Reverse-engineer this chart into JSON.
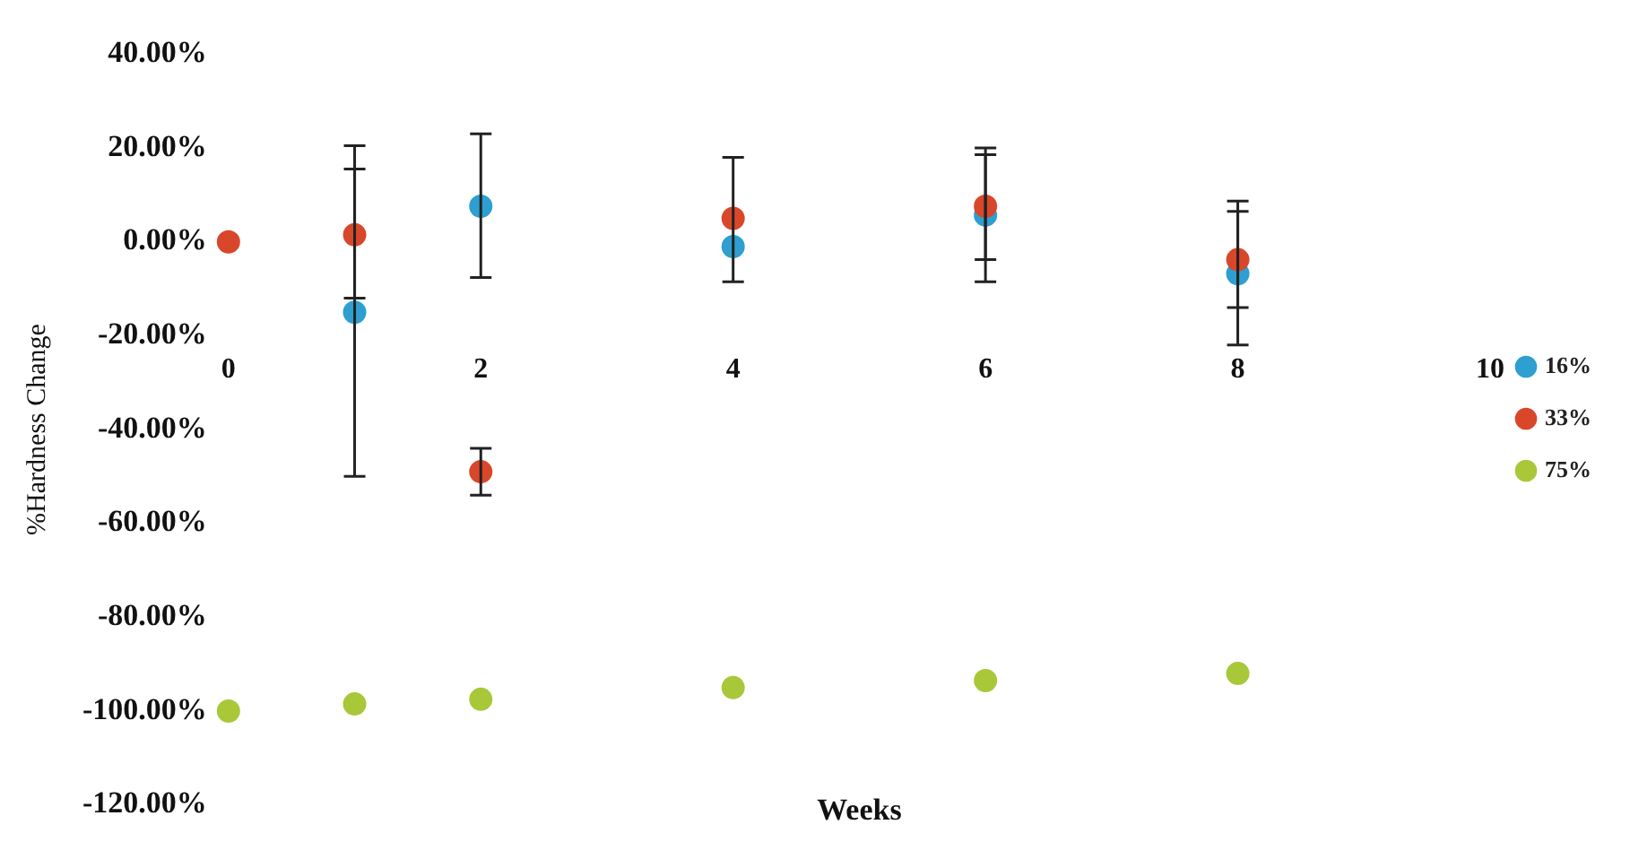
{
  "chart_data": {
    "type": "scatter",
    "xlabel": "Weeks",
    "ylabel": "%Hardness Change",
    "x": [
      0,
      1,
      2,
      4,
      6,
      8
    ],
    "xlim": [
      0,
      10
    ],
    "xticks": [
      0,
      2,
      4,
      6,
      8,
      10
    ],
    "ylim": [
      -120,
      40
    ],
    "yticks": [
      {
        "value": 40,
        "label": "40.00%"
      },
      {
        "value": 20,
        "label": "20.00%"
      },
      {
        "value": 0,
        "label": "0.00%"
      },
      {
        "value": -20,
        "label": "-20.00%"
      },
      {
        "value": -40,
        "label": "-40.00%"
      },
      {
        "value": -60,
        "label": "-60.00%"
      },
      {
        "value": -80,
        "label": "-80.00%"
      },
      {
        "value": -100,
        "label": "-100.00%"
      },
      {
        "value": -120,
        "label": "-120.00%"
      }
    ],
    "series": [
      {
        "name": "16%",
        "color": "#2e9fd0",
        "values": [
          null,
          -15,
          7.6,
          -1,
          5.7,
          -6.8
        ],
        "errors": [
          null,
          [
            -50,
            15.5
          ],
          [
            -7.6,
            23
          ],
          null,
          [
            -8.5,
            18.6
          ],
          [
            -22,
            6.5
          ]
        ]
      },
      {
        "name": "33%",
        "color": "#d9472b",
        "values": [
          0,
          1.5,
          -49,
          5,
          7.6,
          -3.8
        ],
        "errors": [
          null,
          [
            -12,
            20.5
          ],
          [
            -54,
            -44
          ],
          [
            -8.5,
            18
          ],
          [
            -3.8,
            20
          ],
          [
            -14,
            8.7
          ]
        ]
      },
      {
        "name": "75%",
        "color": "#a8c83a",
        "values": [
          -100,
          -98.5,
          -97.5,
          -95,
          -93.5,
          -92
        ]
      }
    ],
    "marker": "circle",
    "legend": "right",
    "grid": false
  }
}
